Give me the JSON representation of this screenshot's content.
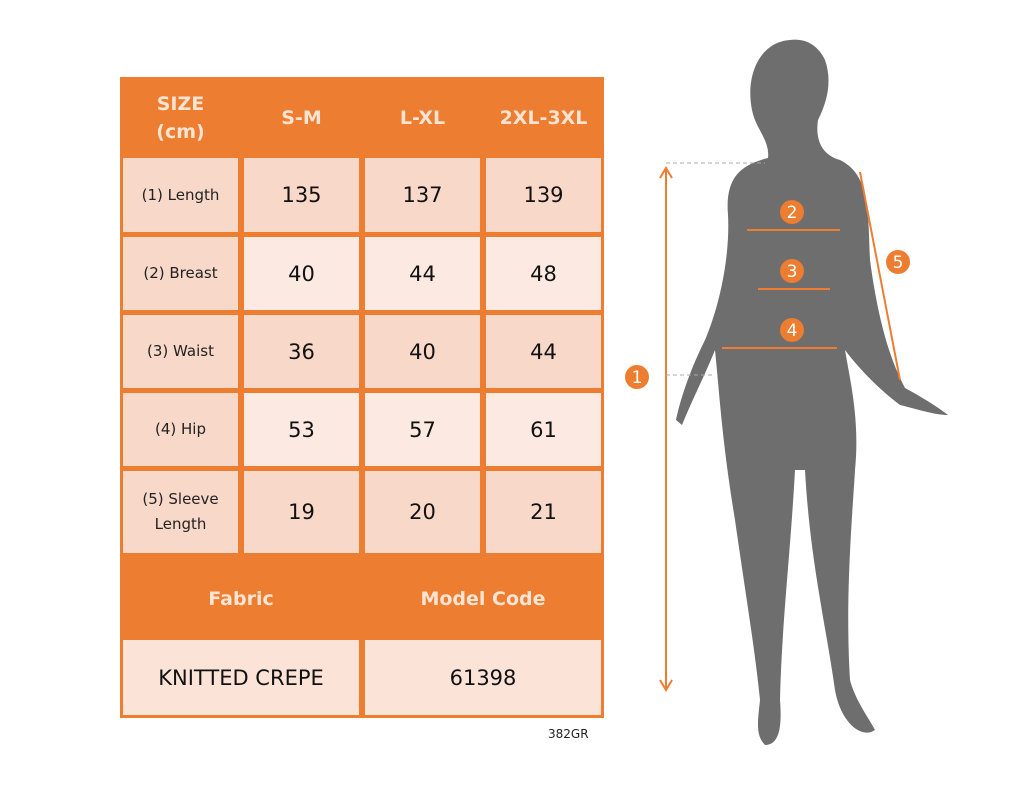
{
  "table": {
    "header": [
      "SIZE\n(cm)",
      "S-M",
      "L-XL",
      "2XL-3XL"
    ],
    "rows": [
      {
        "label": "(1) Length",
        "values": [
          "135",
          "137",
          "139"
        ]
      },
      {
        "label": "(2) Breast",
        "values": [
          "40",
          "44",
          "48"
        ]
      },
      {
        "label": "(3) Waist",
        "values": [
          "36",
          "40",
          "44"
        ]
      },
      {
        "label": "(4) Hip",
        "values": [
          "53",
          "57",
          "61"
        ]
      },
      {
        "label": "(5) Sleeve Length",
        "values": [
          "19",
          "20",
          "21"
        ]
      }
    ],
    "fabric_label": "Fabric",
    "model_code_label": "Model Code",
    "fabric_value": "KNITTED CREPE",
    "model_code_value": "61398"
  },
  "product_code": "382GR",
  "figure": {
    "markers": [
      "1",
      "2",
      "3",
      "4",
      "5"
    ]
  },
  "colors": {
    "accent": "#ED7D31",
    "cell_dark": "#F8D8C8",
    "cell_light": "#FCEAE2",
    "silhouette": "#6E6E6E"
  }
}
